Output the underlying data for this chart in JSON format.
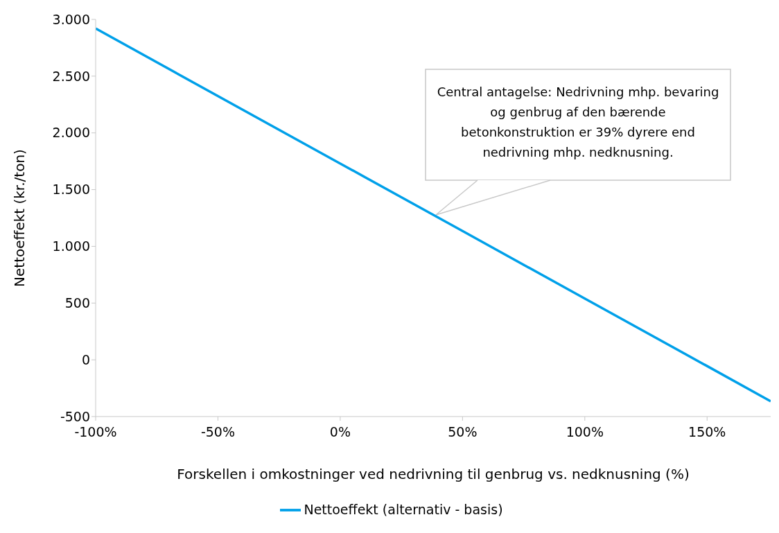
{
  "chart_data": {
    "type": "line",
    "xlabel": "Forskellen i omkostninger ved nedrivning til genbrug vs. nedknusning (%)",
    "ylabel": "Nettoeffekt (kr./ton)",
    "x": [
      -100,
      0,
      50,
      100,
      150,
      176
    ],
    "series": [
      {
        "name": "Nettoeffekt (alternativ - basis)",
        "color": "#00a0e9",
        "values": [
          2920,
          1730,
          1135,
          540,
          -55,
          -365
        ]
      }
    ],
    "xlim": [
      -100,
      176
    ],
    "xticks": [
      {
        "value": -100,
        "label": "-100%"
      },
      {
        "value": -50,
        "label": "-50%"
      },
      {
        "value": 0,
        "label": "0%"
      },
      {
        "value": 50,
        "label": "50%"
      },
      {
        "value": 100,
        "label": "100%"
      },
      {
        "value": 150,
        "label": "150%"
      }
    ],
    "ylim": [
      -500,
      3000
    ],
    "yticks": [
      {
        "value": -500,
        "label": "-500"
      },
      {
        "value": 0,
        "label": "0"
      },
      {
        "value": 500,
        "label": "500"
      },
      {
        "value": 1000,
        "label": "1.000"
      },
      {
        "value": 1500,
        "label": "1.500"
      },
      {
        "value": 2000,
        "label": "2.000"
      },
      {
        "value": 2500,
        "label": "2.500"
      },
      {
        "value": 3000,
        "label": "3.000"
      }
    ],
    "annotations": [
      "Central antagelse: Nedrivning mhp. bevaring og genbrug af den bærende betonkonstruktion er 39% dyrere end nedrivning mhp. nedknusning."
    ],
    "legend": "bottom",
    "grid": false,
    "marker": "none",
    "line_style": "solid"
  }
}
